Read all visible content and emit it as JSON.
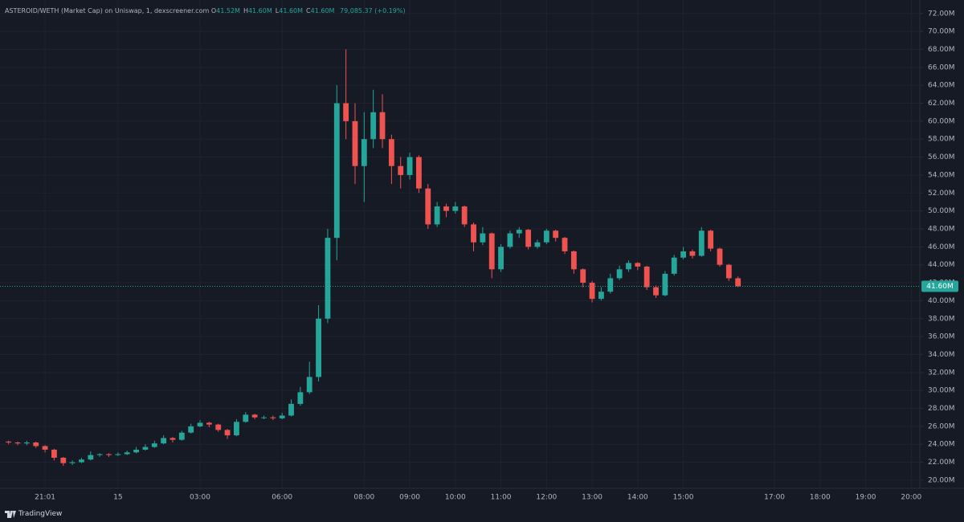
{
  "chart_data": {
    "type": "candlestick",
    "title": "ASTEROID/WETH (Market Cap) on Uniswap, 1, dexscreener.com",
    "ohlc_legend": [
      {
        "key": "O",
        "value": "41.52M"
      },
      {
        "key": "H",
        "value": "41.60M"
      },
      {
        "key": "L",
        "value": "41.60M"
      },
      {
        "key": "C",
        "value": "41.60M"
      }
    ],
    "change": "79,085.37 (+0.19%)",
    "categories": [
      null,
      null,
      null,
      null,
      "21:01",
      null,
      null,
      null,
      null,
      null,
      null,
      null,
      "15",
      null,
      null,
      null,
      null,
      null,
      null,
      null,
      null,
      "03:00",
      null,
      null,
      null,
      null,
      null,
      null,
      null,
      null,
      "06:00",
      null,
      null,
      null,
      null,
      null,
      null,
      null,
      null,
      "08:00",
      null,
      null,
      null,
      null,
      "09:00",
      null,
      null,
      null,
      null,
      "10:00",
      null,
      null,
      null,
      null,
      "11:00",
      null,
      null,
      null,
      null,
      "12:00",
      null,
      null,
      null,
      null,
      "13:00",
      null,
      null,
      null,
      null,
      "14:00",
      null,
      null,
      null,
      null,
      "15:00",
      null,
      null,
      null,
      null,
      null,
      null,
      null,
      null,
      null,
      "17:00",
      null,
      null,
      null,
      null,
      "18:00",
      null,
      null,
      null,
      null,
      "19:00",
      null,
      null,
      null,
      null,
      "20:00"
    ],
    "open": [
      24.3,
      24.2,
      24.1,
      24.2,
      23.8,
      23.4,
      22.5,
      21.9,
      22.0,
      22.3,
      22.8,
      22.9,
      22.8,
      22.9,
      23.1,
      23.4,
      23.7,
      24.1,
      24.7,
      24.5,
      25.3,
      26.0,
      26.4,
      26.2,
      25.6,
      25.0,
      26.5,
      27.3,
      27.0,
      27.0,
      26.9,
      27.2,
      28.5,
      29.8,
      31.5,
      38.0,
      47.0,
      62.0,
      60.0,
      55.0,
      58.0,
      61.0,
      58.0,
      55.0,
      54.0,
      56.0,
      52.5,
      48.5,
      50.5,
      50.0,
      50.5,
      48.5,
      46.5,
      47.5,
      43.5,
      46.0,
      47.5,
      47.9,
      46.0,
      46.5,
      47.8,
      47.0,
      45.5,
      43.5,
      42.0,
      40.2,
      41.0,
      42.5,
      43.5,
      44.2,
      43.8,
      41.5,
      40.6,
      43.0,
      44.8,
      45.5,
      45.0,
      47.8,
      45.8,
      44.0,
      42.5,
      null,
      null,
      null,
      null,
      null,
      null,
      null,
      null,
      null,
      null,
      null,
      null,
      null,
      null,
      null,
      null,
      null,
      null,
      null
    ],
    "high": [
      24.4,
      24.3,
      24.4,
      24.3,
      23.9,
      23.5,
      22.6,
      22.2,
      22.5,
      23.2,
      23.0,
      23.0,
      23.1,
      23.3,
      23.7,
      24.0,
      24.4,
      25.0,
      24.8,
      25.5,
      26.3,
      26.7,
      26.5,
      26.3,
      25.7,
      26.8,
      27.6,
      27.4,
      27.2,
      27.2,
      27.5,
      29.0,
      30.4,
      33.2,
      39.5,
      48.0,
      64.0,
      68.0,
      62.0,
      61.0,
      63.5,
      63.0,
      58.5,
      56.0,
      56.5,
      56.2,
      53.0,
      51.0,
      50.8,
      51.0,
      50.6,
      48.7,
      48.2,
      47.6,
      46.3,
      47.8,
      48.2,
      48.0,
      46.8,
      48.0,
      47.9,
      47.1,
      45.6,
      43.6,
      42.2,
      41.5,
      43.0,
      43.9,
      44.5,
      44.3,
      43.9,
      41.7,
      43.3,
      45.1,
      46.0,
      45.7,
      48.2,
      47.9,
      45.9,
      44.1,
      42.7,
      null,
      null,
      null,
      null,
      null,
      null,
      null,
      null,
      null,
      null,
      null,
      null,
      null,
      null,
      null,
      null,
      null,
      null,
      null
    ],
    "low": [
      24.0,
      23.9,
      23.9,
      23.6,
      23.1,
      22.2,
      21.6,
      21.7,
      21.9,
      22.2,
      22.6,
      22.6,
      22.7,
      22.8,
      23.0,
      23.3,
      23.6,
      24.0,
      24.2,
      24.4,
      25.2,
      25.9,
      25.9,
      25.4,
      24.6,
      24.9,
      26.4,
      26.8,
      26.8,
      26.7,
      26.8,
      27.1,
      28.3,
      29.6,
      31.0,
      37.5,
      44.5,
      58.0,
      53.0,
      51.0,
      57.0,
      57.0,
      53.0,
      52.5,
      53.5,
      52.0,
      48.0,
      48.2,
      49.3,
      49.7,
      48.2,
      45.5,
      46.2,
      42.5,
      43.2,
      45.8,
      47.0,
      45.7,
      45.8,
      46.3,
      46.6,
      45.2,
      43.0,
      41.5,
      39.8,
      40.0,
      40.8,
      42.3,
      43.2,
      43.4,
      41.2,
      40.3,
      40.5,
      42.8,
      44.6,
      44.7,
      44.9,
      45.5,
      43.8,
      42.2,
      41.5,
      null,
      null,
      null,
      null,
      null,
      null,
      null,
      null,
      null,
      null,
      null,
      null,
      null,
      null,
      null,
      null,
      null,
      null,
      null
    ],
    "close": [
      24.2,
      24.1,
      24.2,
      23.8,
      23.4,
      22.5,
      21.9,
      22.0,
      22.3,
      22.8,
      22.9,
      22.8,
      22.9,
      23.1,
      23.4,
      23.7,
      24.1,
      24.7,
      24.5,
      25.3,
      26.0,
      26.4,
      26.2,
      25.6,
      25.0,
      26.5,
      27.3,
      27.0,
      27.0,
      26.9,
      27.2,
      28.5,
      29.8,
      31.5,
      38.0,
      47.0,
      62.0,
      60.0,
      55.0,
      58.0,
      61.0,
      58.0,
      55.0,
      54.0,
      56.0,
      52.5,
      48.5,
      50.5,
      50.0,
      50.5,
      48.5,
      46.5,
      47.5,
      43.5,
      46.0,
      47.5,
      47.9,
      46.0,
      46.5,
      47.8,
      47.0,
      45.5,
      43.5,
      42.0,
      40.2,
      41.0,
      42.5,
      43.5,
      44.2,
      43.8,
      41.5,
      40.6,
      43.0,
      44.8,
      45.5,
      45.0,
      47.8,
      45.8,
      44.0,
      42.5,
      41.6,
      null,
      null,
      null,
      null,
      null,
      null,
      null,
      null,
      null,
      null,
      null,
      null,
      null,
      null,
      null,
      null,
      null,
      null,
      null
    ],
    "up_color": "#26a69a",
    "down_color": "#ef5350",
    "ylim": [
      19.1,
      73.5
    ],
    "yticks": [
      {
        "value": 20,
        "label": "20.00M"
      },
      {
        "value": 22,
        "label": "22.00M"
      },
      {
        "value": 24,
        "label": "24.00M"
      },
      {
        "value": 26,
        "label": "26.00M"
      },
      {
        "value": 28,
        "label": "28.00M"
      },
      {
        "value": 30,
        "label": "30.00M"
      },
      {
        "value": 32,
        "label": "32.00M"
      },
      {
        "value": 34,
        "label": "34.00M"
      },
      {
        "value": 36,
        "label": "36.00M"
      },
      {
        "value": 38,
        "label": "38.00M"
      },
      {
        "value": 40,
        "label": "40.00M"
      },
      {
        "value": 42,
        "label": "42.00M"
      },
      {
        "value": 44,
        "label": "44.00M"
      },
      {
        "value": 46,
        "label": "46.00M"
      },
      {
        "value": 48,
        "label": "48.00M"
      },
      {
        "value": 50,
        "label": "50.00M"
      },
      {
        "value": 52,
        "label": "52.00M"
      },
      {
        "value": 54,
        "label": "54.00M"
      },
      {
        "value": 56,
        "label": "56.00M"
      },
      {
        "value": 58,
        "label": "58.00M"
      },
      {
        "value": 60,
        "label": "60.00M"
      },
      {
        "value": 62,
        "label": "62.00M"
      },
      {
        "value": 64,
        "label": "64.00M"
      },
      {
        "value": 66,
        "label": "66.00M"
      },
      {
        "value": 68,
        "label": "68.00M"
      },
      {
        "value": 70,
        "label": "70.00M"
      },
      {
        "value": 72,
        "label": "72.00M"
      }
    ],
    "last_price": {
      "value": 41.6,
      "label": "41.60M"
    },
    "grid": true,
    "branding": "TradingView"
  }
}
